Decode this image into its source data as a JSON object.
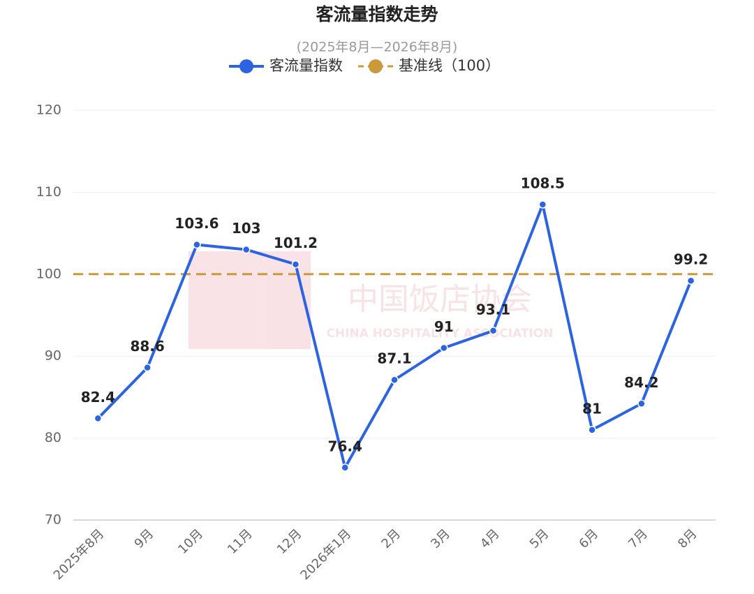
{
  "chart_data": {
    "type": "line",
    "title": "客流量指数走势",
    "subtitle": "(2025年8月—2026年8月)",
    "watermark": [
      "中国饭店协会",
      "CHINA HOSPITALITY ASSOCIATION"
    ],
    "categories": [
      "2025年8月",
      "9月",
      "10月",
      "11月",
      "12月",
      "2026年1月",
      "2月",
      "3月",
      "4月",
      "5月",
      "6月",
      "7月",
      "8月"
    ],
    "series": [
      {
        "name": "客流量指数",
        "color": "#2b63e3",
        "values": [
          82.4,
          88.6,
          103.6,
          103,
          101.2,
          76.4,
          87.1,
          91,
          93.1,
          108.5,
          81,
          84.2,
          99.2
        ]
      }
    ],
    "reference_line": {
      "name": "基准线（100）",
      "value": 100,
      "color": "#c9993a"
    },
    "ylim": [
      70,
      120
    ],
    "yticks": [
      70,
      80,
      90,
      100,
      110,
      120
    ],
    "grid": true
  }
}
